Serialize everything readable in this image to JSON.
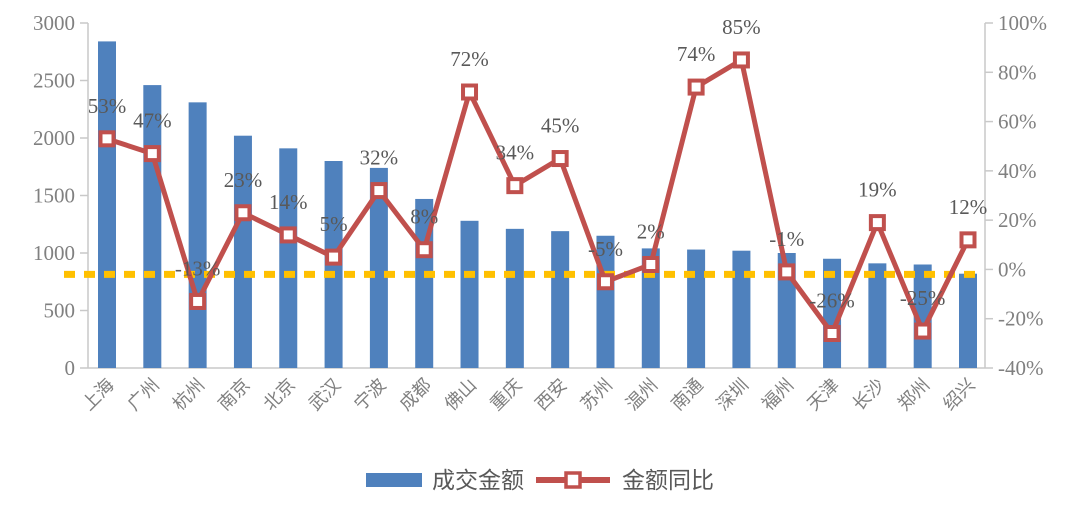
{
  "chart_data": {
    "type": "bar",
    "subtype": "combo-bar-line-dual-axis",
    "title": "",
    "categories": [
      "上海",
      "广州",
      "杭州",
      "南京",
      "北京",
      "武汉",
      "宁波",
      "成都",
      "佛山",
      "重庆",
      "西安",
      "苏州",
      "温州",
      "南通",
      "深圳",
      "福州",
      "天津",
      "长沙",
      "郑州",
      "绍兴"
    ],
    "series": [
      {
        "name": "成交金额",
        "type": "bar",
        "axis": "left",
        "color": "#4F81BD",
        "values": [
          2840,
          2460,
          2310,
          2020,
          1910,
          1800,
          1740,
          1470,
          1280,
          1210,
          1190,
          1150,
          1040,
          1030,
          1020,
          1000,
          950,
          910,
          900,
          820
        ]
      },
      {
        "name": "金额同比",
        "type": "line",
        "axis": "right",
        "color": "#C0504D",
        "marker": "open-square",
        "values": [
          53,
          47,
          -13,
          23,
          14,
          5,
          32,
          8,
          72,
          34,
          45,
          -5,
          2,
          74,
          85,
          -1,
          -26,
          19,
          -25,
          12
        ],
        "data_labels": [
          "53%",
          "47%",
          "-13%",
          "23%",
          "14%",
          "5%",
          "32%",
          "8%",
          "72%",
          "34%",
          "45%",
          "-5%",
          "2%",
          "74%",
          "85%",
          "-1%",
          "-26%",
          "19%",
          "-25%",
          "12%"
        ]
      }
    ],
    "left_axis": {
      "min": 0,
      "max": 3000,
      "step": 500,
      "tick_labels": [
        "3000",
        "2500",
        "2000",
        "1500",
        "1000",
        "500",
        "0"
      ]
    },
    "right_axis": {
      "min": -40,
      "max": 100,
      "step": 20,
      "tick_labels": [
        "100%",
        "80%",
        "60%",
        "40%",
        "20%",
        "0%",
        "-20%",
        "-40%"
      ]
    },
    "reference_line": {
      "right_axis_value": -2,
      "left_axis_value": 800,
      "color": "#FFC000",
      "style": "dashed"
    },
    "legend": [
      {
        "label": "成交金额",
        "swatch": "bar",
        "color": "#4F81BD"
      },
      {
        "label": "金额同比",
        "swatch": "line-marker",
        "color": "#C0504D"
      }
    ],
    "grid": "off",
    "legend_position": "bottom-center",
    "colors": {
      "bar": "#4F81BD",
      "line": "#C0504D",
      "reference": "#FFC000",
      "axis_line": "#C9C9C9",
      "axis_text": "#808080",
      "data_label_text": "#595959"
    }
  }
}
